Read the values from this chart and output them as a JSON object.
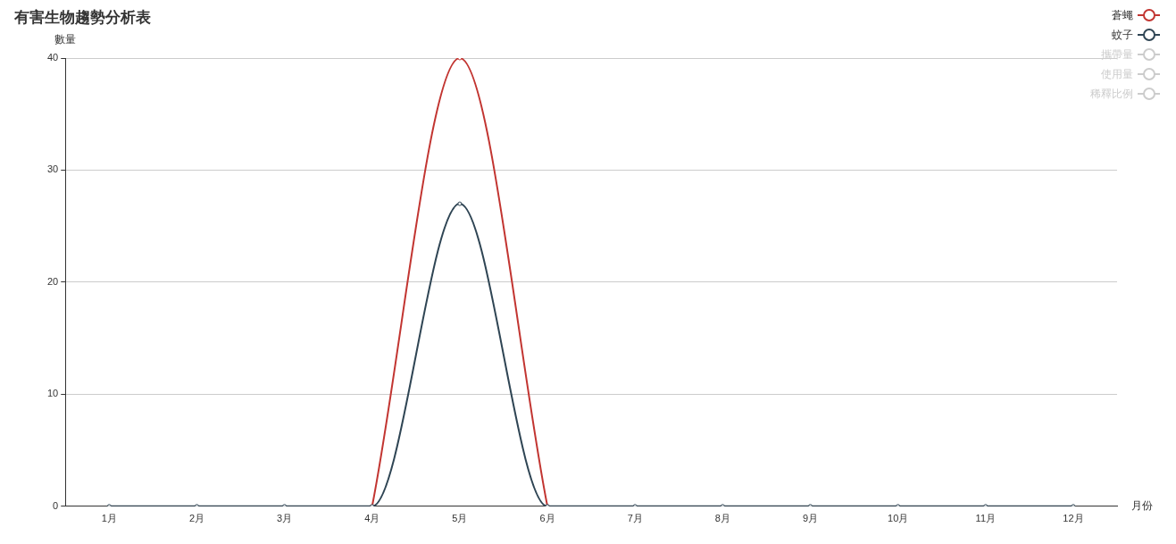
{
  "chart_data": {
    "type": "line",
    "title": "有害生物趨勢分析表",
    "xlabel": "月份",
    "ylabel": "數量",
    "categories": [
      "1月",
      "2月",
      "3月",
      "4月",
      "5月",
      "6月",
      "7月",
      "8月",
      "9月",
      "10月",
      "11月",
      "12月"
    ],
    "series": [
      {
        "name": "蒼蠅",
        "color": "#c23531",
        "values": [
          null,
          null,
          null,
          0,
          40,
          0,
          null,
          null,
          null,
          null,
          null,
          null
        ]
      },
      {
        "name": "蚊子",
        "color": "#2f4554",
        "values": [
          0,
          0,
          0,
          0,
          27,
          0,
          0,
          0,
          0,
          0,
          0,
          0
        ]
      },
      {
        "name": "攜帶量",
        "color": "#cccccc",
        "values": [
          null,
          null,
          null,
          null,
          null,
          null,
          null,
          null,
          null,
          null,
          null,
          null
        ]
      },
      {
        "name": "使用量",
        "color": "#cccccc",
        "values": [
          null,
          null,
          null,
          null,
          null,
          null,
          null,
          null,
          null,
          null,
          null,
          null
        ]
      },
      {
        "name": "稀釋比例",
        "color": "#cccccc",
        "values": [
          null,
          null,
          null,
          null,
          null,
          null,
          null,
          null,
          null,
          null,
          null,
          null
        ]
      }
    ],
    "ylim": [
      0,
      40
    ],
    "yticks": [
      0,
      10,
      20,
      30,
      40
    ],
    "grid": "y",
    "legend": "top right",
    "marker": "circle",
    "line_style": "solid"
  }
}
